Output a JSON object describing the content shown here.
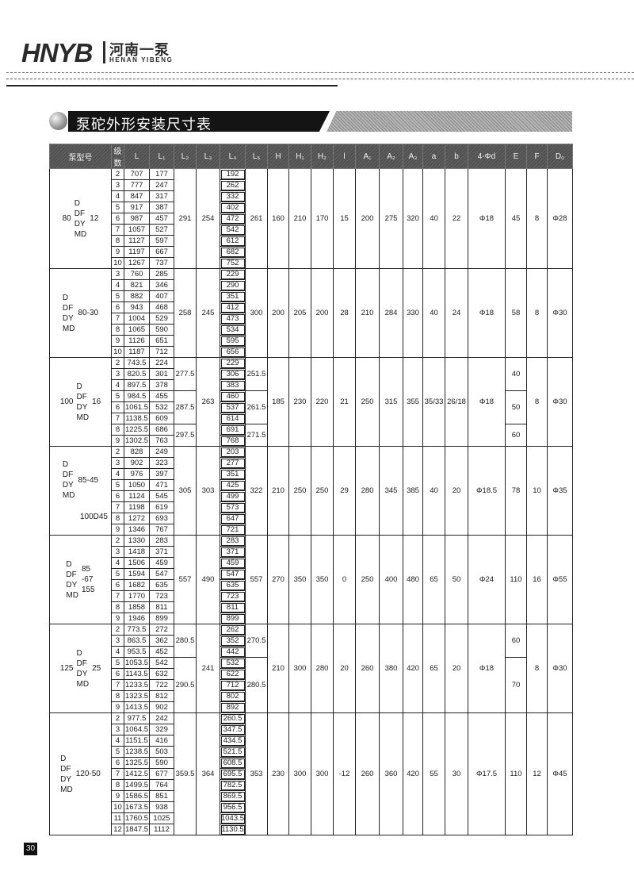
{
  "header": {
    "logo_mark": "HNYB",
    "logo_cn": "河南一泵",
    "logo_en": "HENAN YIBENG"
  },
  "section_title": "泵砣外形安装尺寸表",
  "table": {
    "columns": [
      "泵型号",
      "级数",
      "L",
      "L₁",
      "L₂",
      "L₃",
      "L₄",
      "L₅",
      "H",
      "H₁",
      "H₂",
      "l",
      "A₁",
      "A₂",
      "A₃",
      "a",
      "b",
      "4-Φd",
      "E",
      "F",
      "D₀"
    ],
    "groups": [
      {
        "model": {
          "prefix": "80",
          "types": [
            "D",
            "DF",
            "DY",
            "MD"
          ],
          "suffix": [
            "12"
          ],
          "note": ""
        },
        "rows": [
          [
            "2",
            "707",
            "177",
            "192"
          ],
          [
            "3",
            "777",
            "247",
            "262"
          ],
          [
            "4",
            "847",
            "317",
            "332"
          ],
          [
            "5",
            "917",
            "387",
            "402"
          ],
          [
            "6",
            "987",
            "457",
            "472"
          ],
          [
            "7",
            "1057",
            "527",
            "542"
          ],
          [
            "8",
            "1127",
            "597",
            "612"
          ],
          [
            "9",
            "1197",
            "667",
            "682"
          ],
          [
            "10",
            "1267",
            "737",
            "752"
          ]
        ],
        "merged": {
          "L2": [
            [
              "291",
              9
            ]
          ],
          "L3": [
            [
              "254",
              9
            ]
          ],
          "L5": [
            [
              "261",
              9
            ]
          ],
          "H": [
            [
              "160",
              9
            ]
          ],
          "H1": [
            [
              "210",
              9
            ]
          ],
          "H2": [
            [
              "170",
              9
            ]
          ],
          "l": [
            [
              "15",
              9
            ]
          ],
          "A1": [
            [
              "200",
              9
            ]
          ],
          "A2": [
            [
              "275",
              9
            ]
          ],
          "A3": [
            [
              "320",
              9
            ]
          ],
          "a": [
            [
              "40",
              9
            ]
          ],
          "b": [
            [
              "22",
              9
            ]
          ],
          "d": [
            [
              "Φ18",
              9
            ]
          ],
          "E": [
            [
              "45",
              9
            ]
          ],
          "F": [
            [
              "8",
              9
            ]
          ],
          "D0": [
            [
              "Φ28",
              9
            ]
          ]
        }
      },
      {
        "model": {
          "prefix": "",
          "types": [
            "D",
            "DF",
            "DY",
            "MD"
          ],
          "suffix": [
            "80-30"
          ],
          "note": ""
        },
        "rows": [
          [
            "3",
            "760",
            "285",
            "229"
          ],
          [
            "4",
            "821",
            "346",
            "290"
          ],
          [
            "5",
            "882",
            "407",
            "351"
          ],
          [
            "6",
            "943",
            "468",
            "412"
          ],
          [
            "7",
            "1004",
            "529",
            "473"
          ],
          [
            "8",
            "1065",
            "590",
            "534"
          ],
          [
            "9",
            "1126",
            "651",
            "595"
          ],
          [
            "10",
            "1187",
            "712",
            "656"
          ]
        ],
        "merged": {
          "L2": [
            [
              "258",
              8
            ]
          ],
          "L3": [
            [
              "245",
              8
            ]
          ],
          "L5": [
            [
              "300",
              8
            ]
          ],
          "H": [
            [
              "200",
              8
            ]
          ],
          "H1": [
            [
              "205",
              8
            ]
          ],
          "H2": [
            [
              "200",
              8
            ]
          ],
          "l": [
            [
              "28",
              8
            ]
          ],
          "A1": [
            [
              "210",
              8
            ]
          ],
          "A2": [
            [
              "284",
              8
            ]
          ],
          "A3": [
            [
              "330",
              8
            ]
          ],
          "a": [
            [
              "40",
              8
            ]
          ],
          "b": [
            [
              "24",
              8
            ]
          ],
          "d": [
            [
              "Φ18",
              8
            ]
          ],
          "E": [
            [
              "58",
              8
            ]
          ],
          "F": [
            [
              "8",
              8
            ]
          ],
          "D0": [
            [
              "Φ30",
              8
            ]
          ]
        }
      },
      {
        "model": {
          "prefix": "100",
          "types": [
            "D",
            "DF",
            "DY",
            "MD"
          ],
          "suffix": [
            "16"
          ],
          "note": ""
        },
        "rows": [
          [
            "2",
            "743.5",
            "224",
            "229"
          ],
          [
            "3",
            "820.5",
            "301",
            "306"
          ],
          [
            "4",
            "897.5",
            "378",
            "383"
          ],
          [
            "5",
            "984.5",
            "455",
            "460"
          ],
          [
            "6",
            "1061.5",
            "532",
            "537"
          ],
          [
            "7",
            "1138.5",
            "609",
            "614"
          ],
          [
            "8",
            "1225.5",
            "686",
            "691"
          ],
          [
            "9",
            "1302.5",
            "763",
            "768"
          ]
        ],
        "merged": {
          "L2": [
            [
              "277.5",
              3
            ],
            [
              "287.5",
              3
            ],
            [
              "297.5",
              2
            ]
          ],
          "L3": [
            [
              "263",
              8
            ]
          ],
          "L5": [
            [
              "251.5",
              3
            ],
            [
              "261.5",
              3
            ],
            [
              "271.5",
              2
            ]
          ],
          "H": [
            [
              "185",
              8
            ]
          ],
          "H1": [
            [
              "230",
              8
            ]
          ],
          "H2": [
            [
              "220",
              8
            ]
          ],
          "l": [
            [
              "21",
              8
            ]
          ],
          "A1": [
            [
              "250",
              8
            ]
          ],
          "A2": [
            [
              "315",
              8
            ]
          ],
          "A3": [
            [
              "355",
              8
            ]
          ],
          "a": [
            [
              "35/33",
              8
            ]
          ],
          "b": [
            [
              "26/18",
              8
            ]
          ],
          "d": [
            [
              "Φ18",
              8
            ]
          ],
          "E": [
            [
              "40",
              3
            ],
            [
              "50",
              3
            ],
            [
              "60",
              2
            ]
          ],
          "F": [
            [
              "8",
              8
            ]
          ],
          "D0": [
            [
              "Φ30",
              8
            ]
          ]
        }
      },
      {
        "model": {
          "prefix": "",
          "types": [
            "D",
            "DF",
            "DY",
            "MD"
          ],
          "suffix": [
            "85-45"
          ],
          "note": "100D45"
        },
        "rows": [
          [
            "2",
            "828",
            "249",
            "203"
          ],
          [
            "3",
            "902",
            "323",
            "277"
          ],
          [
            "4",
            "976",
            "397",
            "351"
          ],
          [
            "5",
            "1050",
            "471",
            "425"
          ],
          [
            "6",
            "1124",
            "545",
            "499"
          ],
          [
            "7",
            "1198",
            "619",
            "573"
          ],
          [
            "8",
            "1272",
            "693",
            "647"
          ],
          [
            "9",
            "1346",
            "767",
            "721"
          ]
        ],
        "merged": {
          "L2": [
            [
              "305",
              8
            ]
          ],
          "L3": [
            [
              "303",
              8
            ]
          ],
          "L5": [
            [
              "322",
              8
            ]
          ],
          "H": [
            [
              "210",
              8
            ]
          ],
          "H1": [
            [
              "250",
              8
            ]
          ],
          "H2": [
            [
              "250",
              8
            ]
          ],
          "l": [
            [
              "29",
              8
            ]
          ],
          "A1": [
            [
              "280",
              8
            ]
          ],
          "A2": [
            [
              "345",
              8
            ]
          ],
          "A3": [
            [
              "385",
              8
            ]
          ],
          "a": [
            [
              "40",
              8
            ]
          ],
          "b": [
            [
              "20",
              8
            ]
          ],
          "d": [
            [
              "Φ18.5",
              8
            ]
          ],
          "E": [
            [
              "78",
              8
            ]
          ],
          "F": [
            [
              "10",
              8
            ]
          ],
          "D0": [
            [
              "Φ35",
              8
            ]
          ]
        }
      },
      {
        "model": {
          "prefix": "",
          "types": [
            "D",
            "DF",
            "DY",
            "MD"
          ],
          "suffix": [
            "85",
            "-67",
            "155"
          ],
          "note": ""
        },
        "rows": [
          [
            "2",
            "1330",
            "283",
            "283"
          ],
          [
            "3",
            "1418",
            "371",
            "371"
          ],
          [
            "4",
            "1506",
            "459",
            "459"
          ],
          [
            "5",
            "1594",
            "547",
            "547"
          ],
          [
            "6",
            "1682",
            "635",
            "635"
          ],
          [
            "7",
            "1770",
            "723",
            "723"
          ],
          [
            "8",
            "1858",
            "811",
            "811"
          ],
          [
            "9",
            "1946",
            "899",
            "899"
          ]
        ],
        "merged": {
          "L2": [
            [
              "557",
              8
            ]
          ],
          "L3": [
            [
              "490",
              8
            ]
          ],
          "L5": [
            [
              "557",
              8
            ]
          ],
          "H": [
            [
              "270",
              8
            ]
          ],
          "H1": [
            [
              "350",
              8
            ]
          ],
          "H2": [
            [
              "350",
              8
            ]
          ],
          "l": [
            [
              "0",
              8
            ]
          ],
          "A1": [
            [
              "250",
              8
            ]
          ],
          "A2": [
            [
              "400",
              8
            ]
          ],
          "A3": [
            [
              "480",
              8
            ]
          ],
          "a": [
            [
              "65",
              8
            ]
          ],
          "b": [
            [
              "50",
              8
            ]
          ],
          "d": [
            [
              "Φ24",
              8
            ]
          ],
          "E": [
            [
              "110",
              8
            ]
          ],
          "F": [
            [
              "16",
              8
            ]
          ],
          "D0": [
            [
              "Φ55",
              8
            ]
          ]
        }
      },
      {
        "model": {
          "prefix": "125",
          "types": [
            "D",
            "DF",
            "DY",
            "MD"
          ],
          "suffix": [
            "25"
          ],
          "note": ""
        },
        "rows": [
          [
            "2",
            "773.5",
            "272",
            "262"
          ],
          [
            "3",
            "863.5",
            "362",
            "352"
          ],
          [
            "4",
            "953.5",
            "452",
            "442"
          ],
          [
            "5",
            "1053.5",
            "542",
            "532"
          ],
          [
            "6",
            "1143.5",
            "632",
            "622"
          ],
          [
            "7",
            "1233.5",
            "722",
            "712"
          ],
          [
            "8",
            "1323.5",
            "812",
            "802"
          ],
          [
            "9",
            "1413.5",
            "902",
            "892"
          ]
        ],
        "merged": {
          "L2": [
            [
              "280.5",
              3
            ],
            [
              "290.5",
              5
            ]
          ],
          "L3": [
            [
              "241",
              8
            ]
          ],
          "L5": [
            [
              "270.5",
              3
            ],
            [
              "280.5",
              5
            ]
          ],
          "H": [
            [
              "210",
              8
            ]
          ],
          "H1": [
            [
              "300",
              8
            ]
          ],
          "H2": [
            [
              "280",
              8
            ]
          ],
          "l": [
            [
              "20",
              8
            ]
          ],
          "A1": [
            [
              "260",
              8
            ]
          ],
          "A2": [
            [
              "380",
              8
            ]
          ],
          "A3": [
            [
              "420",
              8
            ]
          ],
          "a": [
            [
              "65",
              8
            ]
          ],
          "b": [
            [
              "20",
              8
            ]
          ],
          "d": [
            [
              "Φ18",
              8
            ]
          ],
          "E": [
            [
              "60",
              3
            ],
            [
              "70",
              5
            ]
          ],
          "F": [
            [
              "8",
              8
            ]
          ],
          "D0": [
            [
              "Φ30",
              8
            ]
          ]
        }
      },
      {
        "model": {
          "prefix": "",
          "types": [
            "D",
            "DF",
            "DY",
            "MD"
          ],
          "suffix": [
            "120-50"
          ],
          "note": ""
        },
        "rows": [
          [
            "2",
            "977.5",
            "242",
            "260.5"
          ],
          [
            "3",
            "1064.5",
            "329",
            "347.5"
          ],
          [
            "4",
            "1151.5",
            "416",
            "434.5"
          ],
          [
            "5",
            "1238.5",
            "503",
            "521.5"
          ],
          [
            "6",
            "1325.5",
            "590",
            "608.5"
          ],
          [
            "7",
            "1412.5",
            "677",
            "695.5"
          ],
          [
            "8",
            "1499.5",
            "764",
            "782.5"
          ],
          [
            "9",
            "1586.5",
            "851",
            "869.5"
          ],
          [
            "10",
            "1673.5",
            "938",
            "956.5"
          ],
          [
            "11",
            "1760.5",
            "1025",
            "1043.5"
          ],
          [
            "12",
            "1847.5",
            "1112",
            "1130.5"
          ]
        ],
        "merged": {
          "L2": [
            [
              "359.5",
              11
            ]
          ],
          "L3": [
            [
              "364",
              11
            ]
          ],
          "L5": [
            [
              "353",
              11
            ]
          ],
          "H": [
            [
              "230",
              11
            ]
          ],
          "H1": [
            [
              "300",
              11
            ]
          ],
          "H2": [
            [
              "300",
              11
            ]
          ],
          "l": [
            [
              "-12",
              11
            ]
          ],
          "A1": [
            [
              "260",
              11
            ]
          ],
          "A2": [
            [
              "360",
              11
            ]
          ],
          "A3": [
            [
              "420",
              11
            ]
          ],
          "a": [
            [
              "55",
              11
            ]
          ],
          "b": [
            [
              "30",
              11
            ]
          ],
          "d": [
            [
              "Φ17.5",
              11
            ]
          ],
          "E": [
            [
              "110",
              11
            ]
          ],
          "F": [
            [
              "12",
              11
            ]
          ],
          "D0": [
            [
              "Φ45",
              11
            ]
          ]
        }
      }
    ]
  },
  "page_number": "30"
}
